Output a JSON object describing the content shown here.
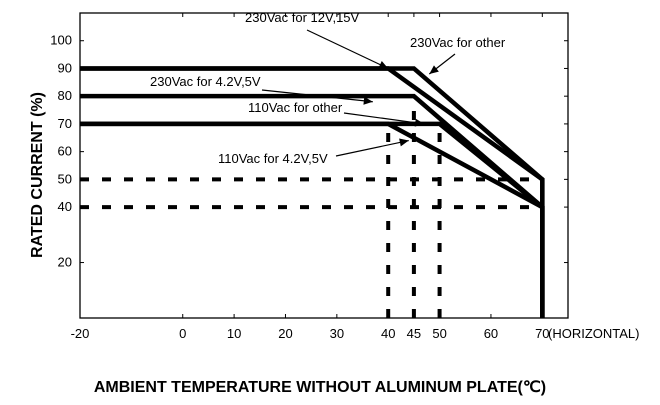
{
  "chart_data": {
    "type": "line",
    "xlabel": "AMBIENT TEMPERATURE WITHOUT ALUMINUM PLATE(℃)",
    "ylabel": "RATED CURRENT (%)",
    "x_suffix": "(HORIZONTAL)",
    "xlim": [
      -20,
      75
    ],
    "ylim": [
      0,
      110
    ],
    "xticks": [
      -20,
      0,
      10,
      20,
      30,
      40,
      45,
      50,
      60,
      70
    ],
    "yticks": [
      20,
      40,
      50,
      60,
      70,
      80,
      90,
      100
    ],
    "grid": false,
    "series": [
      {
        "name": "230Vac for 12V,15V",
        "x": [
          -20,
          40,
          70,
          70
        ],
        "y": [
          90,
          90,
          50,
          0
        ]
      },
      {
        "name": "230Vac for other",
        "x": [
          -20,
          45,
          70,
          70
        ],
        "y": [
          90,
          90,
          50,
          0
        ]
      },
      {
        "name": "230Vac for 4.2V,5V",
        "x": [
          -20,
          45,
          70,
          70
        ],
        "y": [
          80,
          80,
          40,
          0
        ]
      },
      {
        "name": "110Vac for other",
        "x": [
          -20,
          50,
          70,
          70
        ],
        "y": [
          70,
          70,
          40,
          0
        ]
      },
      {
        "name": "110Vac for 4.2V,5V",
        "x": [
          -20,
          40,
          70,
          70
        ],
        "y": [
          70,
          70,
          40,
          0
        ]
      }
    ],
    "dashed_guides": [
      {
        "x": [
          -20,
          70
        ],
        "y": [
          50,
          50
        ]
      },
      {
        "x": [
          -20,
          70
        ],
        "y": [
          40,
          40
        ]
      },
      {
        "x": [
          40,
          40
        ],
        "y": [
          0,
          70
        ]
      },
      {
        "x": [
          45,
          45
        ],
        "y": [
          0,
          80
        ]
      },
      {
        "x": [
          50,
          50
        ],
        "y": [
          0,
          70
        ]
      }
    ],
    "annotations": [
      {
        "text": "230Vac for 12V,15V",
        "target": [
          40,
          90
        ]
      },
      {
        "text": "230Vac for other",
        "target": [
          48,
          88
        ]
      },
      {
        "text": "230Vac for 4.2V,5V",
        "target": [
          37,
          78
        ]
      },
      {
        "text": "110Vac for other",
        "target": [
          47,
          70
        ]
      },
      {
        "text": "110Vac for 4.2V,5V",
        "target": [
          44,
          64
        ]
      }
    ]
  }
}
